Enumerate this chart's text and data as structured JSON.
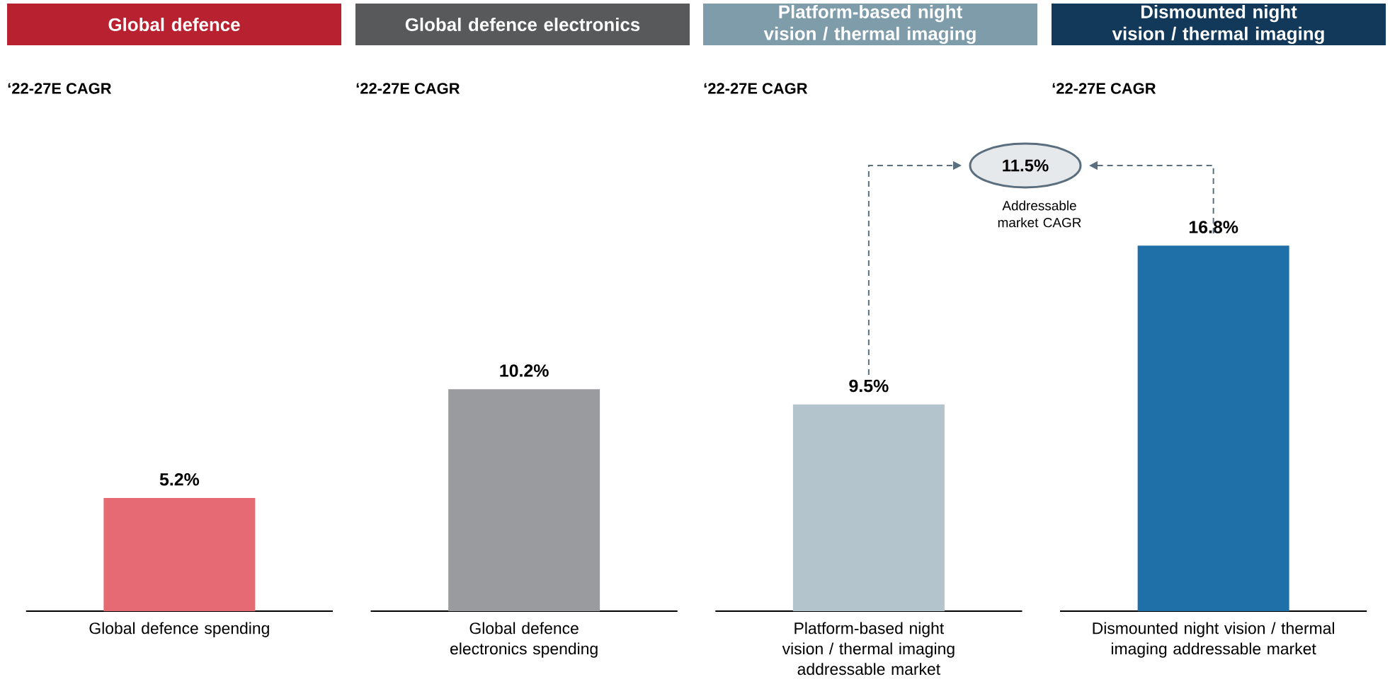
{
  "chart_data": {
    "type": "bar",
    "categories": [
      "Global defence spending",
      "Global defence electronics spending",
      "Platform-based night vision / thermal imaging addressable market",
      "Dismounted night vision / thermal imaging addressable market"
    ],
    "values": [
      5.2,
      10.2,
      9.5,
      16.8
    ],
    "value_labels": [
      "5.2%",
      "10.2%",
      "9.5%",
      "16.8%"
    ],
    "colors": [
      "#e66a73",
      "#9a9b9f",
      "#b3c4cc",
      "#1f6fa8"
    ],
    "annotations": [
      "Global defence",
      "Global defence electronics",
      "Platform-based night vision / thermal imaging",
      "Dismounted night vision / thermal imaging",
      "‘22-27E CAGR",
      "‘22-27E CAGR",
      "‘22-27E CAGR",
      "‘22-27E CAGR",
      "11.5%",
      "Addressable market CAGR"
    ]
  }
}
